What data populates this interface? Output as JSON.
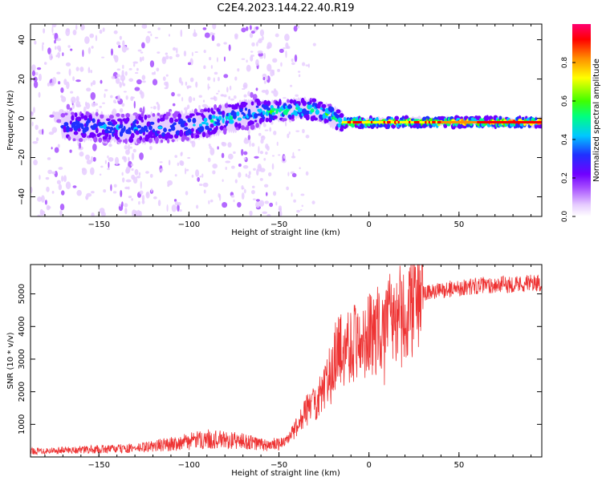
{
  "title": "C2E4.2023.144.22.40.R19",
  "chart_data": [
    {
      "type": "heatmap",
      "xlabel": "Height of straight line (km)",
      "ylabel": "Frequency (Hz)",
      "xlim": [
        -188,
        96
      ],
      "ylim": [
        -50,
        48
      ],
      "xticks": [
        -150,
        -100,
        -50,
        0,
        50
      ],
      "yticks": [
        -40,
        -20,
        0,
        20,
        40
      ],
      "colorbar": {
        "label": "Normalized spectral amplitude",
        "range": [
          0.0,
          1.0
        ],
        "ticks": [
          0.0,
          0.2,
          0.4,
          0.6,
          0.8
        ],
        "colormap": [
          "#ffffff",
          "#e6ccff",
          "#a64dff",
          "#7000ff",
          "#2030ff",
          "#00c8ff",
          "#00ff80",
          "#40ff00",
          "#ffff00",
          "#ff9000",
          "#ff0000",
          "#ff0070"
        ]
      },
      "ridge_center": [
        {
          "x": -165,
          "y": -4
        },
        {
          "x": -140,
          "y": -5
        },
        {
          "x": -120,
          "y": -5
        },
        {
          "x": -100,
          "y": -4
        },
        {
          "x": -80,
          "y": 0
        },
        {
          "x": -60,
          "y": 3
        },
        {
          "x": -45,
          "y": 4
        },
        {
          "x": -33,
          "y": 5
        },
        {
          "x": -25,
          "y": 3
        },
        {
          "x": -15,
          "y": -2
        },
        {
          "x": 0,
          "y": -2
        },
        {
          "x": 50,
          "y": -2
        },
        {
          "x": 95,
          "y": -2
        }
      ]
    },
    {
      "type": "line",
      "xlabel": "Height of straight line (km)",
      "ylabel": "SNR (10 * v/v)",
      "xlim": [
        -188,
        96
      ],
      "ylim": [
        0,
        5900
      ],
      "xticks": [
        -150,
        -100,
        -50,
        0,
        50
      ],
      "yticks": [
        1000,
        2000,
        3000,
        4000,
        5000
      ],
      "series": [
        {
          "color": "#ee3333",
          "envelope": [
            {
              "x": -188,
              "y": 180
            },
            {
              "x": -160,
              "y": 220
            },
            {
              "x": -130,
              "y": 260
            },
            {
              "x": -110,
              "y": 400
            },
            {
              "x": -90,
              "y": 550
            },
            {
              "x": -70,
              "y": 480
            },
            {
              "x": -55,
              "y": 340
            },
            {
              "x": -45,
              "y": 500
            },
            {
              "x": -35,
              "y": 1400
            },
            {
              "x": -25,
              "y": 2000
            },
            {
              "x": -18,
              "y": 3200
            },
            {
              "x": -10,
              "y": 3500
            },
            {
              "x": 0,
              "y": 3700
            },
            {
              "x": 10,
              "y": 4100
            },
            {
              "x": 20,
              "y": 4500
            },
            {
              "x": 30,
              "y": 5000
            },
            {
              "x": 45,
              "y": 5150
            },
            {
              "x": 60,
              "y": 5250
            },
            {
              "x": 80,
              "y": 5300
            },
            {
              "x": 96,
              "y": 5350
            }
          ]
        }
      ]
    }
  ]
}
